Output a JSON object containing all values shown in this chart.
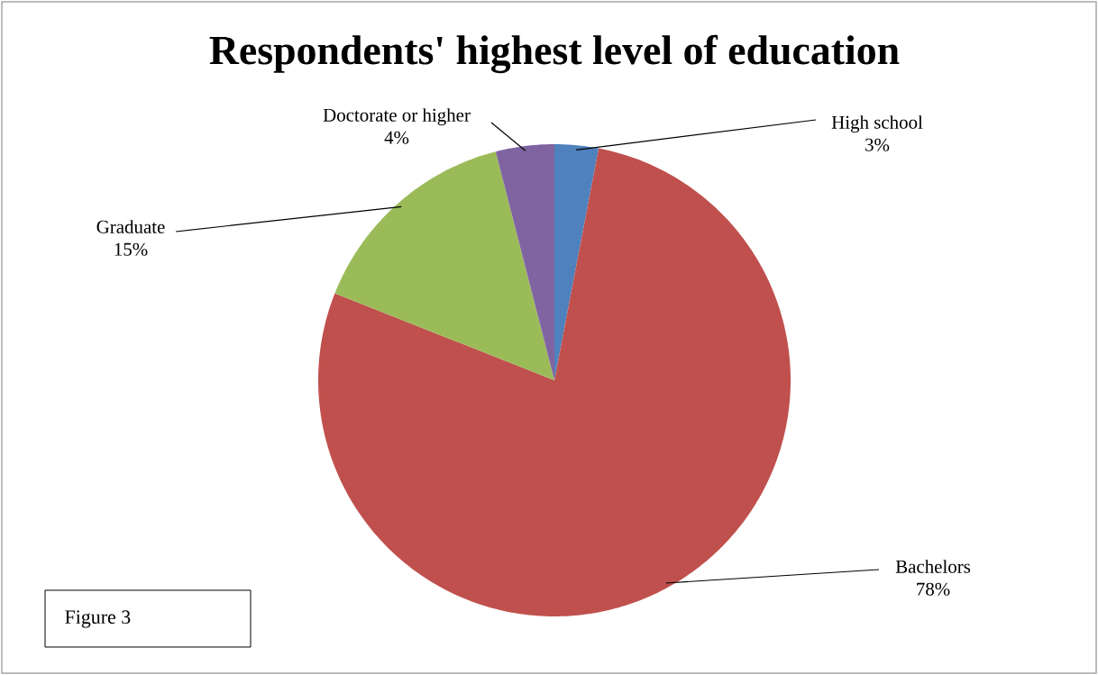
{
  "chart_data": {
    "type": "pie",
    "title": "Respondents' highest level of education",
    "categories": [
      "High school",
      "Bachelors",
      "Graduate",
      "Doctorate or higher"
    ],
    "values": [
      3,
      78,
      15,
      4
    ],
    "value_labels": [
      "3%",
      "78%",
      "15%",
      "4%"
    ],
    "colors": [
      "#4f81bd",
      "#c0504d",
      "#9bbb59",
      "#8064a2"
    ],
    "annotations": [
      "Figure 3"
    ]
  }
}
